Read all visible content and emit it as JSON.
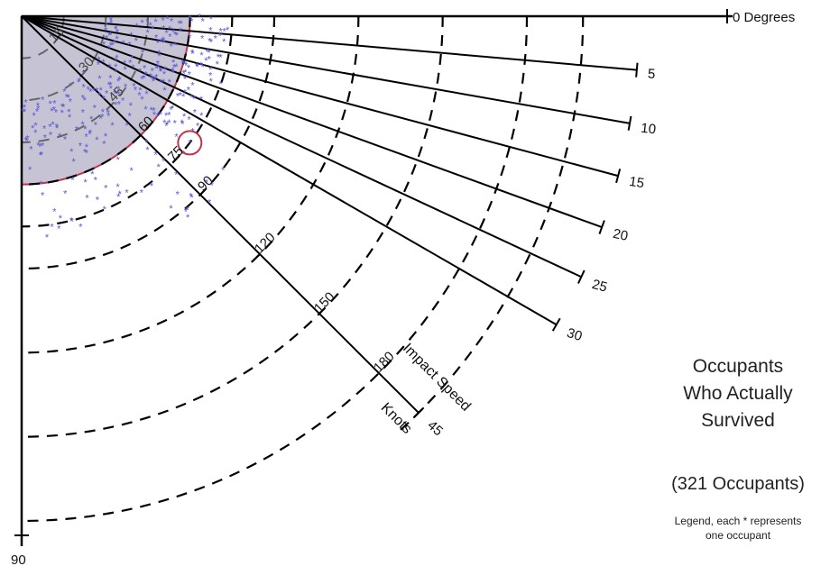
{
  "chart_data": {
    "type": "scatter",
    "description_text": {
      "title_lines": [
        "Occupants",
        "Who Actually",
        "Survived"
      ],
      "count": "(321 Occupants)",
      "legend_lines": [
        "Legend, each * represents",
        "one occupant"
      ]
    },
    "radial_axis": {
      "name": "Impact Speed",
      "unit": "Knots",
      "ticks": [
        15,
        30,
        45,
        60,
        75,
        90,
        120,
        150,
        180
      ],
      "max": 220
    },
    "angle_axis": {
      "ticks": [
        "0 Degrees",
        "5",
        "10",
        "15",
        "20",
        "25",
        "30",
        "45",
        "90"
      ],
      "values": [
        0,
        5,
        10,
        15,
        20,
        25,
        30,
        45,
        90
      ]
    },
    "survivable_envelope": {
      "max_speed": 60,
      "max_angle": 90
    },
    "highlighted_point": {
      "speed": 75,
      "angle": 37
    },
    "occupant_symbol": "*",
    "occupant_color": "#5a5ad8",
    "envelope_color": "#c2334e",
    "envelope_fill": "#bcb8cc"
  }
}
